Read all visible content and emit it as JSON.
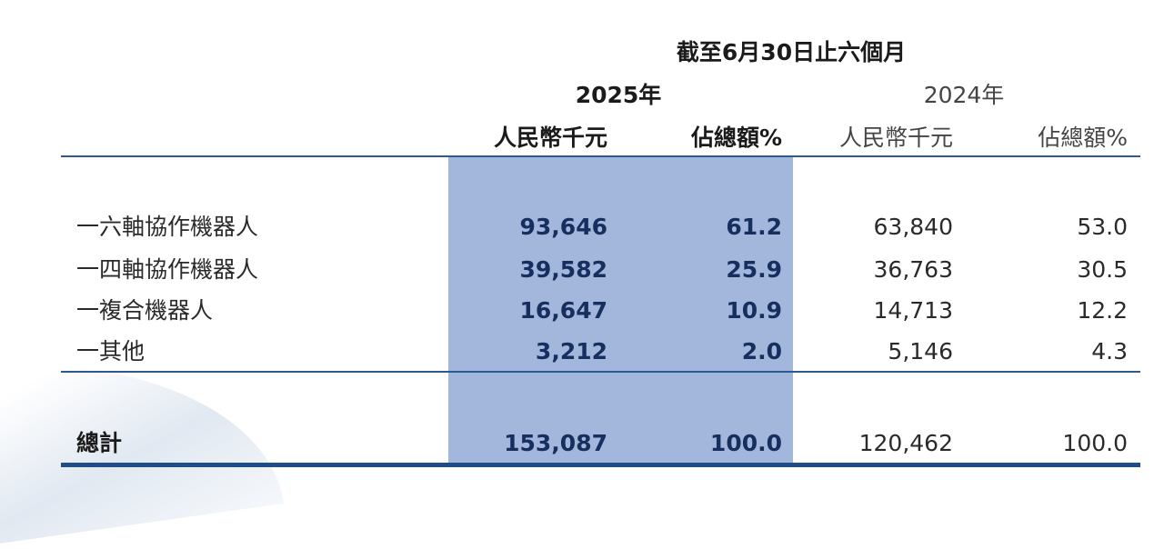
{
  "header": {
    "period": "截至6月30日止六個月",
    "year_current": "2025年",
    "year_prior": "2024年",
    "col_rmb_current": "人民幣千元",
    "col_pct_current": "佔總額%",
    "col_rmb_prior": "人民幣千元",
    "col_pct_prior": "佔總額%"
  },
  "rows": [
    {
      "label": "一六軸協作機器人",
      "rmb_2025": "93,646",
      "pct_2025": "61.2",
      "rmb_2024": "63,840",
      "pct_2024": "53.0"
    },
    {
      "label": "一四軸協作機器人",
      "rmb_2025": "39,582",
      "pct_2025": "25.9",
      "rmb_2024": "36,763",
      "pct_2024": "30.5"
    },
    {
      "label": "一複合機器人",
      "rmb_2025": "16,647",
      "pct_2025": "10.9",
      "rmb_2024": "14,713",
      "pct_2024": "12.2"
    },
    {
      "label": "一其他",
      "rmb_2025": "3,212",
      "pct_2025": "2.0",
      "rmb_2024": "5,146",
      "pct_2024": "4.3"
    }
  ],
  "total": {
    "label": "總計",
    "rmb_2025": "153,087",
    "pct_2025": "100.0",
    "rmb_2024": "120,462",
    "pct_2024": "100.0"
  },
  "colors": {
    "highlight": "#a3b7dc",
    "rule": "#2b5a8e",
    "current_text": "#162f5e"
  }
}
